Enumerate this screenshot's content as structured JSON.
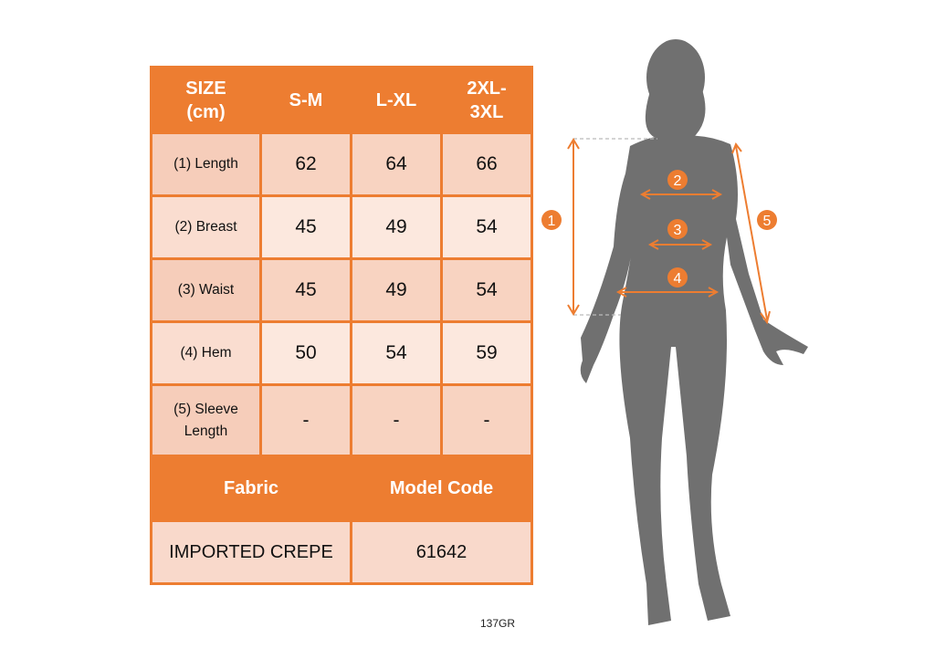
{
  "table": {
    "header": [
      "SIZE (cm)",
      "S-M",
      "L-XL",
      "2XL-3XL"
    ],
    "rows": [
      {
        "label": "(1) Length",
        "values": [
          "62",
          "64",
          "66"
        ]
      },
      {
        "label": "(2) Breast",
        "values": [
          "45",
          "49",
          "54"
        ]
      },
      {
        "label": "(3) Waist",
        "values": [
          "45",
          "49",
          "54"
        ]
      },
      {
        "label": "(4) Hem",
        "values": [
          "50",
          "54",
          "59"
        ]
      },
      {
        "label": "(5) Sleeve Length",
        "values": [
          "-",
          "-",
          "-"
        ]
      }
    ],
    "fabric_label": "Fabric",
    "model_code_label": "Model Code",
    "fabric_value": "IMPORTED CREPE",
    "model_code_value": "61642"
  },
  "footer_code": "137GR",
  "figure": {
    "markers": [
      "1",
      "2",
      "3",
      "4",
      "5"
    ]
  },
  "colors": {
    "accent": "#ED7D31",
    "silhouette": "#707070"
  }
}
